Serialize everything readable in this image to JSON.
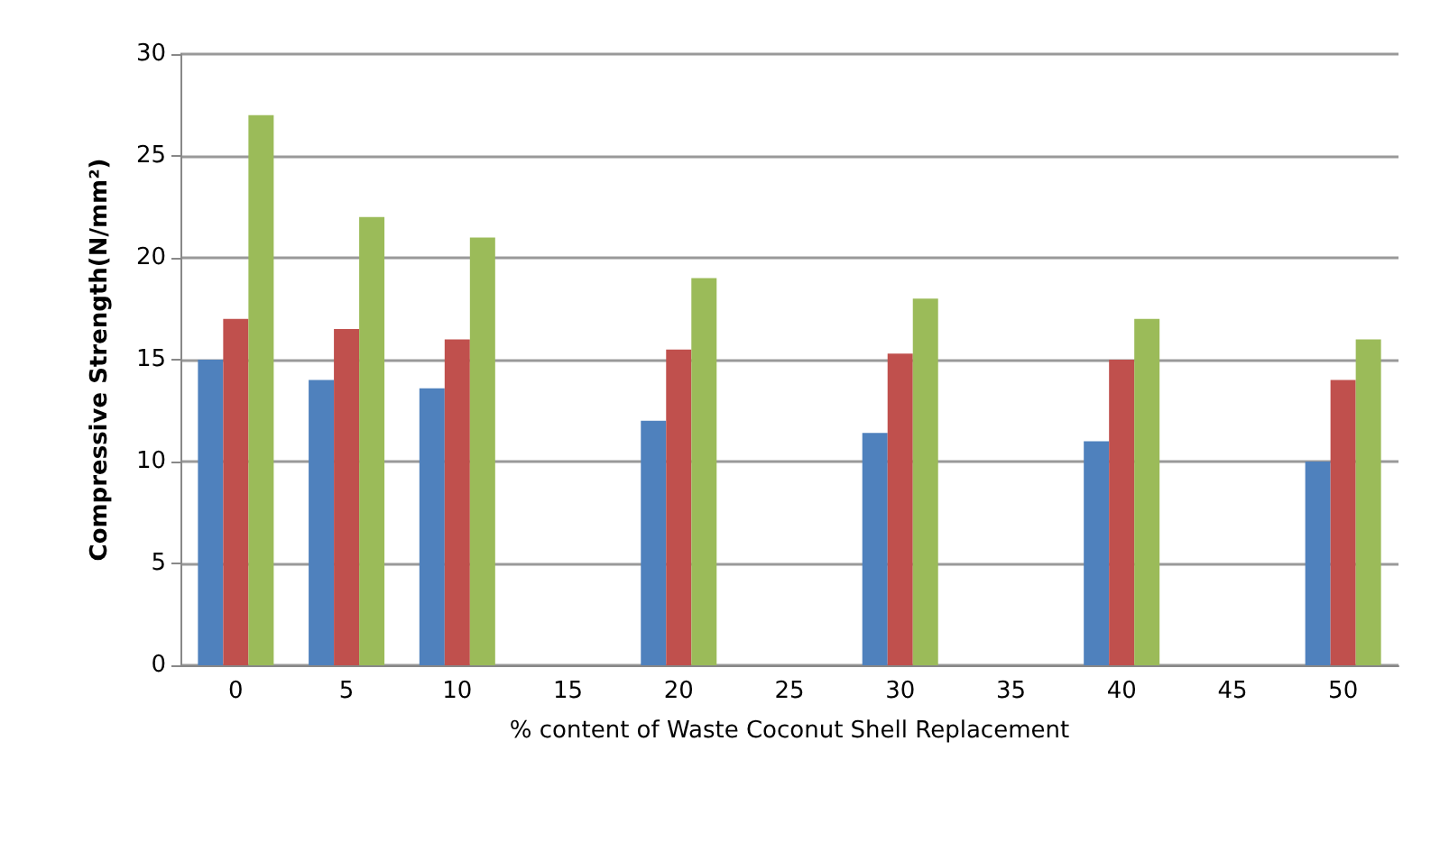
{
  "chart_data": {
    "type": "bar",
    "xlabel": "% content of Waste Coconut Shell Replacement",
    "ylabel": "Compressive Strength(N/mm²)",
    "categories": [
      "0",
      "5",
      "10",
      "15",
      "20",
      "25",
      "30",
      "35",
      "40",
      "45",
      "50"
    ],
    "series": [
      {
        "color": "#4f81bd",
        "values": [
          15,
          14,
          13.6,
          null,
          12,
          null,
          11.4,
          null,
          11,
          null,
          10
        ]
      },
      {
        "color": "#c0504d",
        "values": [
          17,
          16.5,
          16,
          null,
          15.5,
          null,
          15.3,
          null,
          15,
          null,
          14
        ]
      },
      {
        "color": "#9bbb59",
        "values": [
          27,
          22,
          21,
          null,
          19,
          null,
          18,
          null,
          17,
          null,
          16
        ]
      }
    ],
    "ylim": [
      0,
      30
    ],
    "yticks": [
      0,
      5,
      10,
      15,
      20,
      25,
      30
    ],
    "grid": "y"
  }
}
